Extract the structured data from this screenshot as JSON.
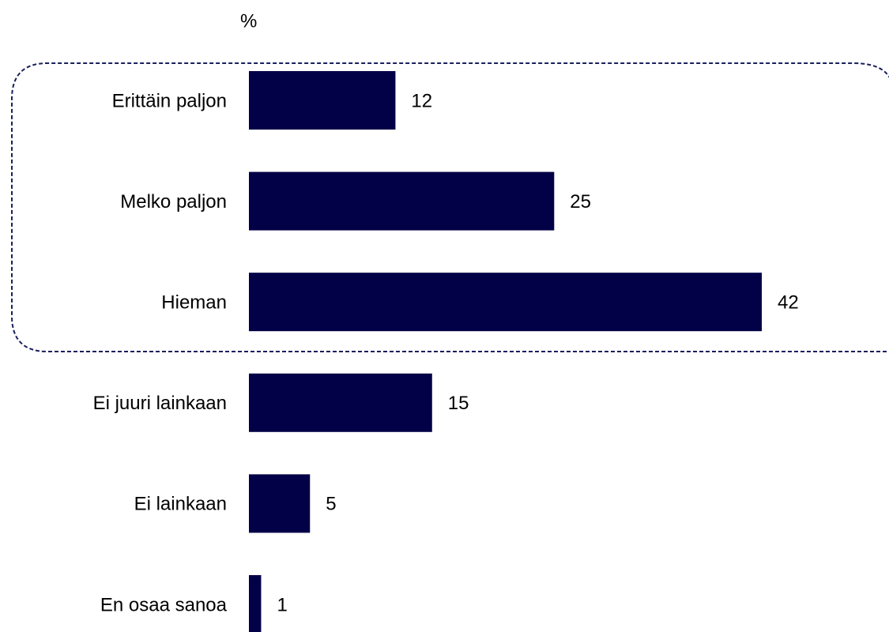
{
  "chart_data": {
    "type": "bar",
    "orientation": "horizontal",
    "title": "%",
    "categories": [
      "Erittäin paljon",
      "Melko paljon",
      "Hieman",
      "Ei juuri lainkaan",
      "Ei lainkaan",
      "En osaa sanoa"
    ],
    "values": [
      12,
      25,
      42,
      15,
      5,
      1
    ],
    "color": "#020046"
  }
}
